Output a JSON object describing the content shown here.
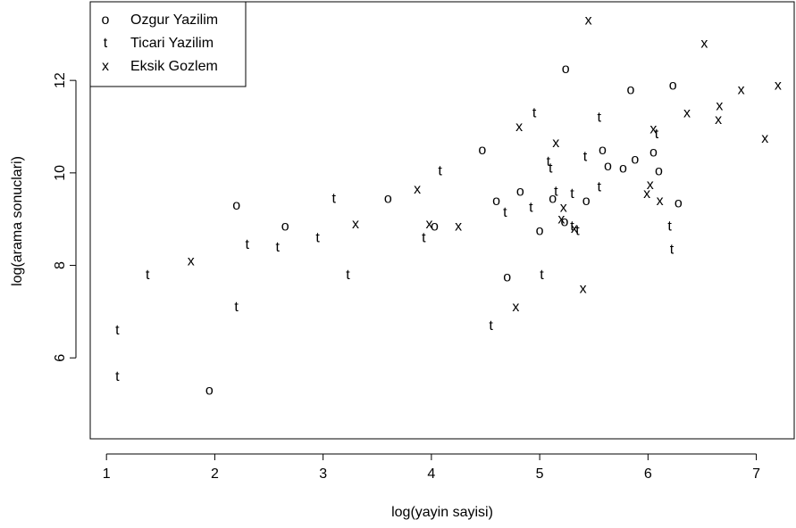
{
  "chart_data": {
    "type": "scatter",
    "title": "",
    "xlabel": "log(yayin sayisi)",
    "ylabel": "log(arama sonuclari)",
    "xlim": [
      0.85,
      7.35
    ],
    "ylim": [
      4.25,
      13.7
    ],
    "xticks": [
      "1",
      "2",
      "3",
      "4",
      "5",
      "6",
      "7"
    ],
    "yticks": [
      "6",
      "8",
      "10",
      "12"
    ],
    "grid": false,
    "legend_position": "top-left",
    "series": [
      {
        "name": "Ozgur Yazilim",
        "marker": "o",
        "points": [
          [
            1.95,
            5.3
          ],
          [
            2.2,
            9.3
          ],
          [
            2.65,
            8.85
          ],
          [
            3.6,
            9.45
          ],
          [
            4.03,
            8.85
          ],
          [
            4.47,
            10.5
          ],
          [
            4.6,
            9.4
          ],
          [
            4.7,
            7.75
          ],
          [
            4.82,
            9.6
          ],
          [
            5.0,
            8.75
          ],
          [
            5.12,
            9.45
          ],
          [
            5.23,
            8.95
          ],
          [
            5.24,
            12.25
          ],
          [
            5.43,
            9.4
          ],
          [
            5.58,
            10.5
          ],
          [
            5.63,
            10.15
          ],
          [
            5.77,
            10.1
          ],
          [
            5.84,
            11.8
          ],
          [
            5.88,
            10.3
          ],
          [
            6.05,
            10.45
          ],
          [
            6.1,
            10.05
          ],
          [
            6.23,
            11.9
          ],
          [
            6.28,
            9.35
          ]
        ]
      },
      {
        "name": "Ticari Yazilim",
        "marker": "t",
        "points": [
          [
            1.1,
            6.6
          ],
          [
            1.1,
            5.6
          ],
          [
            1.38,
            7.8
          ],
          [
            2.2,
            7.1
          ],
          [
            2.3,
            8.45
          ],
          [
            2.58,
            8.4
          ],
          [
            2.95,
            8.6
          ],
          [
            3.1,
            9.45
          ],
          [
            3.23,
            7.8
          ],
          [
            3.93,
            8.6
          ],
          [
            4.08,
            10.05
          ],
          [
            4.55,
            6.7
          ],
          [
            4.68,
            9.15
          ],
          [
            4.92,
            9.25
          ],
          [
            4.95,
            11.3
          ],
          [
            5.02,
            7.8
          ],
          [
            5.08,
            10.25
          ],
          [
            5.1,
            10.1
          ],
          [
            5.15,
            9.6
          ],
          [
            5.3,
            8.85
          ],
          [
            5.3,
            9.55
          ],
          [
            5.35,
            8.75
          ],
          [
            5.42,
            10.35
          ],
          [
            5.55,
            11.2
          ],
          [
            5.55,
            9.7
          ],
          [
            6.08,
            10.85
          ],
          [
            6.2,
            8.85
          ],
          [
            6.22,
            8.35
          ]
        ]
      },
      {
        "name": "Eksik Gozlem",
        "marker": "x",
        "points": [
          [
            1.78,
            8.1
          ],
          [
            3.3,
            8.9
          ],
          [
            3.87,
            9.65
          ],
          [
            3.98,
            8.9
          ],
          [
            4.25,
            8.85
          ],
          [
            4.78,
            7.1
          ],
          [
            4.81,
            11.0
          ],
          [
            5.15,
            10.65
          ],
          [
            5.2,
            9.0
          ],
          [
            5.22,
            9.25
          ],
          [
            5.32,
            8.8
          ],
          [
            5.4,
            7.5
          ],
          [
            5.45,
            13.3
          ],
          [
            5.99,
            9.55
          ],
          [
            6.02,
            9.75
          ],
          [
            6.05,
            10.95
          ],
          [
            6.11,
            9.4
          ],
          [
            6.36,
            11.3
          ],
          [
            6.52,
            12.8
          ],
          [
            6.65,
            11.15
          ],
          [
            6.66,
            11.45
          ],
          [
            6.86,
            11.8
          ],
          [
            7.08,
            10.75
          ],
          [
            7.2,
            11.9
          ]
        ]
      }
    ]
  }
}
